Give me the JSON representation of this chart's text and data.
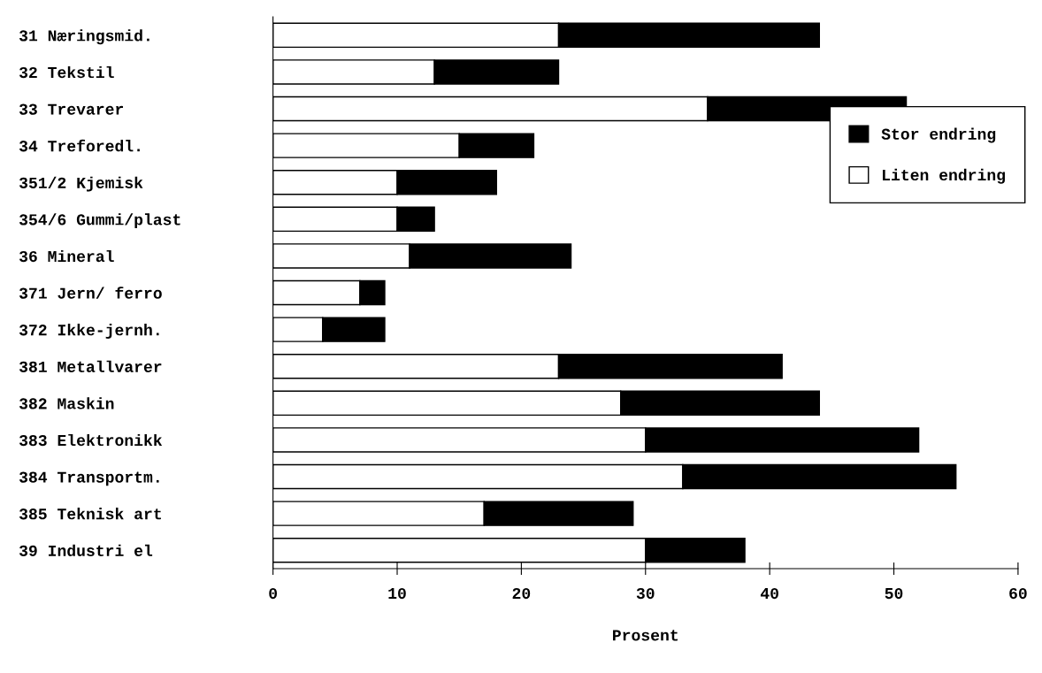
{
  "chart_data": {
    "type": "bar",
    "orientation": "horizontal",
    "stacked": true,
    "xlabel": "Prosent",
    "categories": [
      "31 Næringsmid.",
      "32 Tekstil",
      "33 Trevarer",
      "34 Treforedl.",
      "351/2 Kjemisk",
      "354/6 Gummi/plast",
      "36 Mineral",
      "371 Jern/ ferro",
      "372 Ikke-jernh.",
      "381 Metallvarer",
      "382 Maskin",
      "383 Elektronikk",
      "384 Transportm.",
      "385 Teknisk art",
      "39 Industri el"
    ],
    "series": [
      {
        "name": "Liten endring",
        "color": "#ffffff",
        "values": [
          23,
          13,
          35,
          15,
          10,
          10,
          11,
          7,
          4,
          23,
          28,
          30,
          33,
          17,
          30
        ]
      },
      {
        "name": "Stor endring",
        "color": "#000000",
        "values": [
          21,
          10,
          16,
          6,
          8,
          3,
          13,
          2,
          5,
          18,
          16,
          22,
          22,
          12,
          8
        ]
      }
    ],
    "xlim": [
      0,
      60
    ],
    "xticks": [
      0,
      10,
      20,
      30,
      40,
      50,
      60
    ],
    "grid": false,
    "legend": "right"
  }
}
